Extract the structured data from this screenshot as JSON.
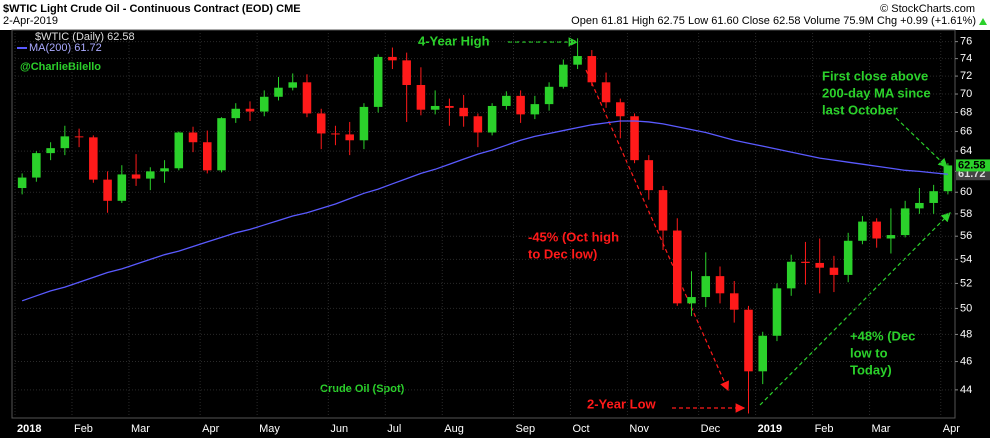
{
  "chart_data": {
    "type": "candlestick",
    "title": "$WTIC Light Crude Oil - Continuous Contract (EOD) CME",
    "date": "2-Apr-2019",
    "quote": "Open 61.81 High 62.75 Low 61.60 Close 62.58 Volume 75.9M Chg +0.99 (+1.61%)",
    "source": "© StockCharts.com",
    "watermark": "@CharlieBilello",
    "caption": "Crude Oil (Spot)",
    "name": "$WTIC (Daily) 62.58",
    "up_color": "#2bd12b",
    "down_color": "#ff1a1a",
    "log_scale": true,
    "grid": true,
    "categories": [
      "2018",
      null,
      null,
      null,
      "Feb",
      null,
      null,
      null,
      "Mar",
      null,
      null,
      null,
      null,
      "Apr",
      null,
      null,
      null,
      "May",
      null,
      null,
      null,
      null,
      "Jun",
      null,
      null,
      null,
      "Jul",
      null,
      null,
      null,
      "Aug",
      null,
      null,
      null,
      null,
      "Sep",
      null,
      null,
      null,
      "Oct",
      null,
      null,
      null,
      "Nov",
      null,
      null,
      null,
      null,
      "Dec",
      null,
      null,
      null,
      "2019",
      null,
      null,
      null,
      "Feb",
      null,
      null,
      null,
      "Mar",
      null,
      null,
      null,
      null,
      "Apr"
    ],
    "open": [
      60.4,
      61.4,
      63.8,
      64.3,
      65.5,
      65.4,
      61.2,
      59.2,
      61.7,
      61.3,
      62.0,
      62.3,
      65.9,
      64.9,
      62.1,
      67.4,
      68.4,
      68.1,
      69.7,
      70.7,
      71.3,
      67.9,
      65.8,
      65.7,
      65.1,
      68.6,
      74.2,
      73.8,
      71.0,
      68.3,
      68.7,
      68.5,
      67.6,
      65.9,
      68.7,
      69.8,
      67.8,
      68.9,
      70.8,
      73.3,
      74.3,
      71.3,
      69.1,
      67.6,
      63.1,
      60.2,
      56.5,
      50.4,
      50.9,
      52.6,
      51.2,
      49.9,
      45.3,
      47.9,
      51.6,
      53.8,
      53.7,
      53.3,
      52.7,
      55.6,
      57.3,
      55.8,
      56.1,
      58.5,
      59.0,
      60.1
    ],
    "high": [
      61.8,
      64.0,
      64.9,
      66.6,
      66.3,
      65.6,
      62.0,
      62.6,
      63.7,
      62.4,
      63.1,
      66.0,
      66.5,
      66.1,
      67.5,
      69.0,
      69.2,
      70.4,
      71.9,
      72.3,
      72.2,
      68.4,
      66.6,
      67.0,
      69.0,
      74.5,
      75.3,
      74.7,
      73.0,
      70.4,
      69.5,
      69.9,
      67.9,
      69.0,
      70.3,
      70.4,
      69.8,
      71.3,
      73.9,
      76.4,
      75.0,
      72.4,
      69.5,
      67.9,
      63.6,
      60.6,
      57.6,
      53.0,
      54.6,
      53.4,
      52.2,
      50.2,
      48.2,
      52.0,
      54.4,
      55.5,
      55.8,
      54.3,
      56.3,
      57.8,
      57.6,
      58.5,
      59.2,
      60.4,
      60.7,
      62.8
    ],
    "low": [
      59.8,
      61.0,
      63.1,
      63.6,
      64.4,
      60.9,
      58.1,
      59.0,
      60.6,
      60.2,
      60.9,
      62.1,
      63.9,
      61.8,
      61.9,
      66.9,
      67.1,
      67.6,
      69.3,
      70.4,
      67.5,
      64.2,
      64.6,
      63.6,
      64.2,
      68.0,
      72.8,
      67.0,
      67.7,
      67.8,
      66.6,
      66.5,
      64.4,
      65.6,
      68.3,
      66.9,
      67.3,
      68.2,
      70.6,
      72.8,
      70.9,
      68.5,
      65.3,
      62.8,
      59.3,
      54.8,
      50.2,
      49.4,
      50.1,
      50.4,
      48.9,
      42.4,
      44.4,
      47.5,
      51.0,
      51.9,
      51.2,
      51.3,
      52.1,
      55.3,
      55.0,
      54.5,
      55.9,
      58.0,
      58.0,
      59.8
    ],
    "close": [
      61.4,
      63.8,
      64.3,
      65.5,
      65.4,
      61.2,
      59.2,
      61.7,
      61.3,
      62.0,
      62.3,
      65.9,
      64.9,
      62.1,
      67.4,
      68.4,
      68.1,
      69.7,
      70.7,
      71.3,
      67.9,
      65.8,
      65.7,
      65.1,
      68.6,
      74.2,
      73.8,
      71.0,
      68.3,
      68.7,
      68.5,
      67.6,
      65.9,
      68.7,
      69.8,
      67.8,
      68.9,
      70.8,
      73.3,
      74.3,
      71.3,
      69.1,
      67.6,
      63.1,
      60.2,
      56.5,
      50.4,
      50.9,
      52.6,
      51.2,
      49.9,
      45.3,
      47.9,
      51.6,
      53.8,
      53.7,
      53.3,
      52.7,
      55.6,
      57.3,
      55.8,
      56.1,
      58.5,
      59.0,
      60.1,
      62.58
    ],
    "ma": {
      "name": "MA(200) 61.72",
      "color": "#5a5aff",
      "values": [
        50.6,
        51.0,
        51.4,
        51.7,
        52.1,
        52.5,
        52.9,
        53.2,
        53.6,
        54.0,
        54.4,
        54.7,
        55.1,
        55.5,
        55.9,
        56.3,
        56.6,
        57.0,
        57.4,
        57.8,
        58.1,
        58.5,
        58.9,
        59.4,
        59.9,
        60.3,
        60.8,
        61.3,
        61.8,
        62.2,
        62.7,
        63.2,
        63.7,
        64.1,
        64.6,
        65.1,
        65.5,
        65.8,
        66.1,
        66.4,
        66.7,
        66.9,
        67.1,
        67.1,
        67.0,
        66.8,
        66.5,
        66.2,
        65.9,
        65.5,
        65.1,
        64.8,
        64.5,
        64.2,
        63.9,
        63.6,
        63.3,
        63.1,
        62.9,
        62.7,
        62.5,
        62.3,
        62.1,
        62.0,
        61.85,
        61.72
      ]
    },
    "ylim": [
      42.1,
      77.4
    ],
    "yticks": [
      44,
      46,
      48,
      50,
      52,
      54,
      56,
      58,
      60,
      62,
      64,
      66,
      68,
      70,
      72,
      74,
      76
    ],
    "annotations": [
      {
        "lines": [
          "4-Year High"
        ],
        "color": "#2bd12b"
      },
      {
        "lines": [
          "First close above",
          "200-day MA since",
          "last October"
        ],
        "color": "#2bd12b"
      },
      {
        "lines": [
          "-45% (Oct high",
          "to Dec low)"
        ],
        "color": "#ff1a1a"
      },
      {
        "lines": [
          "2-Year Low"
        ],
        "color": "#ff1a1a"
      },
      {
        "lines": [
          "+48% (Dec",
          "low to",
          "Today)"
        ],
        "color": "#2bd12b"
      }
    ]
  }
}
